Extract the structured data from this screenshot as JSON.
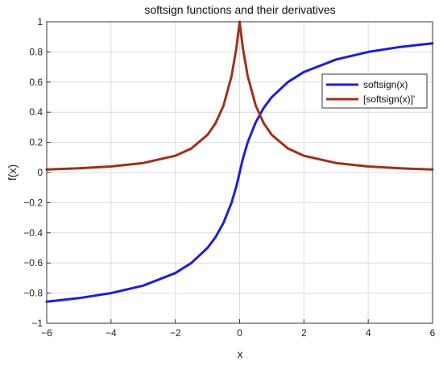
{
  "chart_data": {
    "type": "line",
    "title": "softsign functions and their derivatives",
    "xlabel": "x",
    "ylabel": "f(x)",
    "xlim": [
      -6,
      6
    ],
    "ylim": [
      -1,
      1
    ],
    "xticks": [
      -6,
      -4,
      -2,
      0,
      2,
      4,
      6
    ],
    "yticks": [
      -1,
      -0.8,
      -0.6,
      -0.4,
      -0.2,
      0,
      0.2,
      0.4,
      0.6,
      0.8,
      1
    ],
    "x_tick_labels": [
      "−6",
      "−4",
      "−2",
      "0",
      "2",
      "4",
      "6"
    ],
    "y_tick_labels": [
      "−1",
      "−0.8",
      "−0.6",
      "−0.4",
      "−0.2",
      "0",
      "0.2",
      "0.4",
      "0.6",
      "0.8",
      "1"
    ],
    "grid": true,
    "legend_position": "top-right",
    "x": [
      -6,
      -5,
      -4,
      -3,
      -2,
      -1.5,
      -1,
      -0.75,
      -0.5,
      -0.25,
      -0.1,
      0,
      0.1,
      0.25,
      0.5,
      0.75,
      1,
      1.5,
      2,
      3,
      4,
      5,
      6
    ],
    "series": [
      {
        "name": "softsign(x)",
        "color": "#1f1fd6",
        "values": [
          -0.857,
          -0.833,
          -0.8,
          -0.75,
          -0.667,
          -0.6,
          -0.5,
          -0.429,
          -0.333,
          -0.2,
          -0.091,
          0,
          0.091,
          0.2,
          0.333,
          0.429,
          0.5,
          0.6,
          0.667,
          0.75,
          0.8,
          0.833,
          0.857
        ]
      },
      {
        "name": "[softsign(x)]'",
        "color": "#a0301e",
        "values": [
          0.02,
          0.028,
          0.04,
          0.063,
          0.111,
          0.16,
          0.25,
          0.327,
          0.444,
          0.64,
          0.826,
          1,
          0.826,
          0.64,
          0.444,
          0.327,
          0.25,
          0.16,
          0.111,
          0.063,
          0.04,
          0.028,
          0.02
        ]
      }
    ]
  }
}
